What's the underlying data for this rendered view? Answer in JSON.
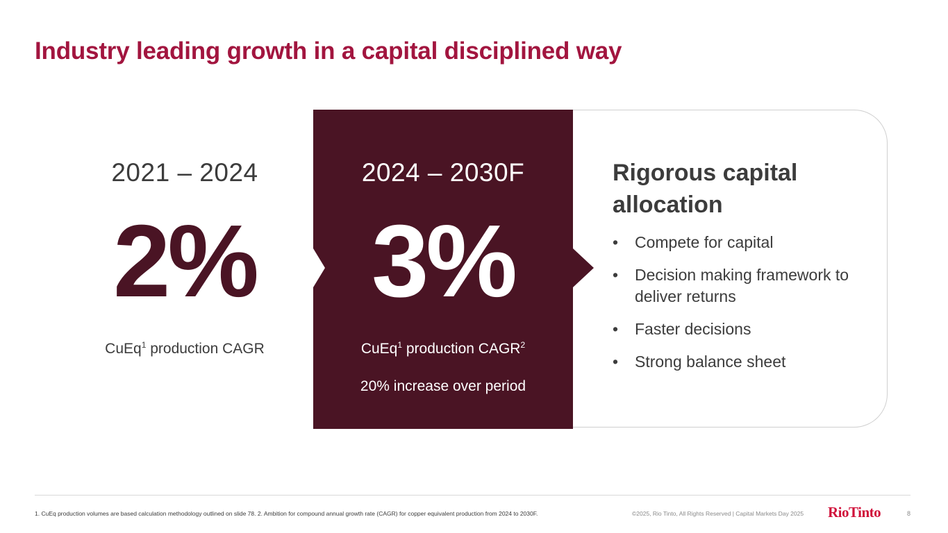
{
  "title": "Industry leading growth in a capital disciplined way",
  "left": {
    "period": "2021 – 2024",
    "value": "2%",
    "caption_pre": "CuEq",
    "caption_sup": "1",
    "caption_post": " production CAGR"
  },
  "middle": {
    "period": "2024 – 2030F",
    "value": "3%",
    "caption_pre": "CuEq",
    "caption_sup": "1",
    "caption_post": " production CAGR",
    "caption_sup2": "2",
    "subtext": "20% increase over period"
  },
  "right": {
    "title": "Rigorous capital allocation",
    "bullet_symbol": "•",
    "bullets": [
      "Compete for capital",
      "Decision making framework to deliver returns",
      "Faster decisions",
      "Strong balance sheet"
    ]
  },
  "footer": {
    "footnote": "1. CuEq production volumes are based calculation methodology outlined on slide 78. 2. Ambition for compound annual growth rate (CAGR) for copper equivalent production from 2024 to 2030F.",
    "copyright": "©2025, Rio Tinto, All Rights Reserved  |  Capital Markets Day 2025",
    "logo_text": "RioTinto",
    "page_number": "8"
  },
  "colors": {
    "title": "#a2153f",
    "dark_maroon": "#4a1424",
    "logo_red": "#d0103a"
  }
}
